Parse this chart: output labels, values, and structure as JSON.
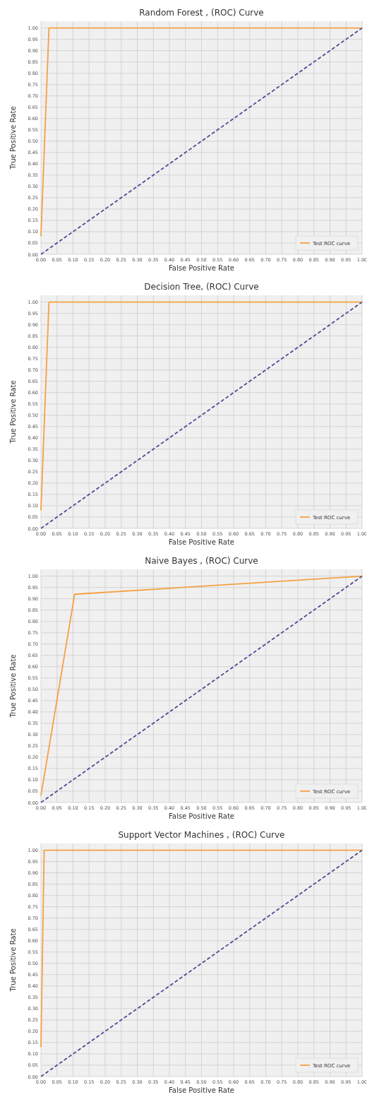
{
  "chart_data": [
    {
      "type": "line",
      "title": "Random Forest , (ROC) Curve",
      "xlabel": "False Positive Rate",
      "ylabel": "True Positive Rate",
      "xlim": [
        0,
        1
      ],
      "ylim": [
        0,
        1.03
      ],
      "xticks": [
        {
          "value": 0,
          "label": "0.00"
        },
        {
          "value": 0.05,
          "label": "0.05"
        },
        {
          "value": 0.1,
          "label": "0.10"
        },
        {
          "value": 0.15,
          "label": "0.15"
        },
        {
          "value": 0.2,
          "label": "0.20"
        },
        {
          "value": 0.25,
          "label": "0.25"
        },
        {
          "value": 0.3,
          "label": "0.30"
        },
        {
          "value": 0.35,
          "label": "0.35"
        },
        {
          "value": 0.4,
          "label": "0.40"
        },
        {
          "value": 0.45,
          "label": "0.45"
        },
        {
          "value": 0.5,
          "label": "0.50"
        },
        {
          "value": 0.55,
          "label": "0.55"
        },
        {
          "value": 0.6,
          "label": "0.60"
        },
        {
          "value": 0.65,
          "label": "0.65"
        },
        {
          "value": 0.7,
          "label": "0.70"
        },
        {
          "value": 0.75,
          "label": "0.75"
        },
        {
          "value": 0.8,
          "label": "0.80"
        },
        {
          "value": 0.85,
          "label": "0.85"
        },
        {
          "value": 0.9,
          "label": "0.90"
        },
        {
          "value": 0.95,
          "label": "0.95"
        },
        {
          "value": 1,
          "label": "1.00"
        }
      ],
      "yticks": [
        {
          "value": 0,
          "label": "0.00"
        },
        {
          "value": 0.05,
          "label": "0.05"
        },
        {
          "value": 0.1,
          "label": "0.10"
        },
        {
          "value": 0.15,
          "label": "0.15"
        },
        {
          "value": 0.2,
          "label": "0.20"
        },
        {
          "value": 0.25,
          "label": "0.25"
        },
        {
          "value": 0.3,
          "label": "0.30"
        },
        {
          "value": 0.35,
          "label": "0.35"
        },
        {
          "value": 0.4,
          "label": "0.40"
        },
        {
          "value": 0.45,
          "label": "0.45"
        },
        {
          "value": 0.5,
          "label": "0.50"
        },
        {
          "value": 0.55,
          "label": "0.55"
        },
        {
          "value": 0.6,
          "label": "0.60"
        },
        {
          "value": 0.65,
          "label": "0.65"
        },
        {
          "value": 0.7,
          "label": "0.70"
        },
        {
          "value": 0.75,
          "label": "0.75"
        },
        {
          "value": 0.8,
          "label": "0.80"
        },
        {
          "value": 0.85,
          "label": "0.85"
        },
        {
          "value": 0.9,
          "label": "0.90"
        },
        {
          "value": 0.95,
          "label": "0.95"
        },
        {
          "value": 1,
          "label": "1.00"
        }
      ],
      "grid": true,
      "legend": "bottom right",
      "marker": "none",
      "series": [
        {
          "name": "Test ROC curve",
          "color": "#f5a142",
          "x": [
            0,
            0.025,
            1
          ],
          "values": [
            0.08,
            1,
            1
          ],
          "line_style": "solid"
        },
        {
          "color": "#4b4b96",
          "x": [
            0,
            1
          ],
          "values": [
            0,
            1
          ],
          "line_style": "dashed"
        }
      ]
    },
    {
      "type": "line",
      "title": "Decision Tree, (ROC) Curve",
      "xlabel": "False Positive Rate",
      "ylabel": "True Positive Rate",
      "xlim": [
        0,
        1
      ],
      "ylim": [
        0,
        1.03
      ],
      "xticks": [
        {
          "value": 0,
          "label": "0.00"
        },
        {
          "value": 0.05,
          "label": "0.05"
        },
        {
          "value": 0.1,
          "label": "0.10"
        },
        {
          "value": 0.15,
          "label": "0.15"
        },
        {
          "value": 0.2,
          "label": "0.20"
        },
        {
          "value": 0.25,
          "label": "0.25"
        },
        {
          "value": 0.3,
          "label": "0.30"
        },
        {
          "value": 0.35,
          "label": "0.35"
        },
        {
          "value": 0.4,
          "label": "0.40"
        },
        {
          "value": 0.45,
          "label": "0.45"
        },
        {
          "value": 0.5,
          "label": "0.50"
        },
        {
          "value": 0.55,
          "label": "0.55"
        },
        {
          "value": 0.6,
          "label": "0.60"
        },
        {
          "value": 0.65,
          "label": "0.65"
        },
        {
          "value": 0.7,
          "label": "0.70"
        },
        {
          "value": 0.75,
          "label": "0.75"
        },
        {
          "value": 0.8,
          "label": "0.80"
        },
        {
          "value": 0.85,
          "label": "0.85"
        },
        {
          "value": 0.9,
          "label": "0.90"
        },
        {
          "value": 0.95,
          "label": "0.95"
        },
        {
          "value": 1,
          "label": "1.00"
        }
      ],
      "yticks": [
        {
          "value": 0,
          "label": "0.00"
        },
        {
          "value": 0.05,
          "label": "0.05"
        },
        {
          "value": 0.1,
          "label": "0.10"
        },
        {
          "value": 0.15,
          "label": "0.15"
        },
        {
          "value": 0.2,
          "label": "0.20"
        },
        {
          "value": 0.25,
          "label": "0.25"
        },
        {
          "value": 0.3,
          "label": "0.30"
        },
        {
          "value": 0.35,
          "label": "0.35"
        },
        {
          "value": 0.4,
          "label": "0.40"
        },
        {
          "value": 0.45,
          "label": "0.45"
        },
        {
          "value": 0.5,
          "label": "0.50"
        },
        {
          "value": 0.55,
          "label": "0.55"
        },
        {
          "value": 0.6,
          "label": "0.60"
        },
        {
          "value": 0.65,
          "label": "0.65"
        },
        {
          "value": 0.7,
          "label": "0.70"
        },
        {
          "value": 0.75,
          "label": "0.75"
        },
        {
          "value": 0.8,
          "label": "0.80"
        },
        {
          "value": 0.85,
          "label": "0.85"
        },
        {
          "value": 0.9,
          "label": "0.90"
        },
        {
          "value": 0.95,
          "label": "0.95"
        },
        {
          "value": 1,
          "label": "1.00"
        }
      ],
      "grid": true,
      "legend": "bottom right",
      "marker": "none",
      "series": [
        {
          "name": "Test ROC curve",
          "color": "#f5a142",
          "x": [
            0,
            0.025,
            1
          ],
          "values": [
            0.08,
            1,
            1
          ],
          "line_style": "solid"
        },
        {
          "color": "#4b4b96",
          "x": [
            0,
            1
          ],
          "values": [
            0,
            1
          ],
          "line_style": "dashed"
        }
      ]
    },
    {
      "type": "line",
      "title": "Naive Bayes , (ROC) Curve",
      "xlabel": "False Positive Rate",
      "ylabel": "True Positive Rate",
      "xlim": [
        0,
        1
      ],
      "ylim": [
        0,
        1.03
      ],
      "xticks": [
        {
          "value": 0,
          "label": "0.00"
        },
        {
          "value": 0.05,
          "label": "0.05"
        },
        {
          "value": 0.1,
          "label": "0.10"
        },
        {
          "value": 0.15,
          "label": "0.15"
        },
        {
          "value": 0.2,
          "label": "0.20"
        },
        {
          "value": 0.25,
          "label": "0.25"
        },
        {
          "value": 0.3,
          "label": "0.30"
        },
        {
          "value": 0.35,
          "label": "0.35"
        },
        {
          "value": 0.4,
          "label": "0.40"
        },
        {
          "value": 0.45,
          "label": "0.45"
        },
        {
          "value": 0.5,
          "label": "0.50"
        },
        {
          "value": 0.55,
          "label": "0.55"
        },
        {
          "value": 0.6,
          "label": "0.60"
        },
        {
          "value": 0.65,
          "label": "0.65"
        },
        {
          "value": 0.7,
          "label": "0.70"
        },
        {
          "value": 0.75,
          "label": "0.75"
        },
        {
          "value": 0.8,
          "label": "0.80"
        },
        {
          "value": 0.85,
          "label": "0.85"
        },
        {
          "value": 0.9,
          "label": "0.90"
        },
        {
          "value": 0.95,
          "label": "0.95"
        },
        {
          "value": 1,
          "label": "1.00"
        }
      ],
      "yticks": [
        {
          "value": 0,
          "label": "0.00"
        },
        {
          "value": 0.05,
          "label": "0.05"
        },
        {
          "value": 0.1,
          "label": "0.10"
        },
        {
          "value": 0.15,
          "label": "0.15"
        },
        {
          "value": 0.2,
          "label": "0.20"
        },
        {
          "value": 0.25,
          "label": "0.25"
        },
        {
          "value": 0.3,
          "label": "0.30"
        },
        {
          "value": 0.35,
          "label": "0.35"
        },
        {
          "value": 0.4,
          "label": "0.40"
        },
        {
          "value": 0.45,
          "label": "0.45"
        },
        {
          "value": 0.5,
          "label": "0.50"
        },
        {
          "value": 0.55,
          "label": "0.55"
        },
        {
          "value": 0.6,
          "label": "0.60"
        },
        {
          "value": 0.65,
          "label": "0.65"
        },
        {
          "value": 0.7,
          "label": "0.70"
        },
        {
          "value": 0.75,
          "label": "0.75"
        },
        {
          "value": 0.8,
          "label": "0.80"
        },
        {
          "value": 0.85,
          "label": "0.85"
        },
        {
          "value": 0.9,
          "label": "0.90"
        },
        {
          "value": 0.95,
          "label": "0.95"
        },
        {
          "value": 1,
          "label": "1.00"
        }
      ],
      "grid": true,
      "legend": "bottom right",
      "marker": "none",
      "series": [
        {
          "name": "Test ROC curve",
          "color": "#f5a142",
          "x": [
            0,
            0.105,
            1
          ],
          "values": [
            0.03,
            0.92,
            1
          ],
          "line_style": "solid"
        },
        {
          "color": "#4b4b96",
          "x": [
            0,
            1
          ],
          "values": [
            0,
            1
          ],
          "line_style": "dashed"
        }
      ]
    },
    {
      "type": "line",
      "title": "Support Vector Machines , (ROC) Curve",
      "xlabel": "False Positive Rate",
      "ylabel": "True Positive Rate",
      "xlim": [
        0,
        1
      ],
      "ylim": [
        0,
        1.03
      ],
      "xticks": [
        {
          "value": 0,
          "label": "0.00"
        },
        {
          "value": 0.05,
          "label": "0.05"
        },
        {
          "value": 0.1,
          "label": "0.10"
        },
        {
          "value": 0.15,
          "label": "0.15"
        },
        {
          "value": 0.2,
          "label": "0.20"
        },
        {
          "value": 0.25,
          "label": "0.25"
        },
        {
          "value": 0.3,
          "label": "0.30"
        },
        {
          "value": 0.35,
          "label": "0.35"
        },
        {
          "value": 0.4,
          "label": "0.40"
        },
        {
          "value": 0.45,
          "label": "0.45"
        },
        {
          "value": 0.5,
          "label": "0.50"
        },
        {
          "value": 0.55,
          "label": "0.55"
        },
        {
          "value": 0.6,
          "label": "0.60"
        },
        {
          "value": 0.65,
          "label": "0.65"
        },
        {
          "value": 0.7,
          "label": "0.70"
        },
        {
          "value": 0.75,
          "label": "0.75"
        },
        {
          "value": 0.8,
          "label": "0.80"
        },
        {
          "value": 0.85,
          "label": "0.85"
        },
        {
          "value": 0.9,
          "label": "0.90"
        },
        {
          "value": 0.95,
          "label": "0.95"
        },
        {
          "value": 1,
          "label": "1.00"
        }
      ],
      "yticks": [
        {
          "value": 0,
          "label": "0.00"
        },
        {
          "value": 0.05,
          "label": "0.05"
        },
        {
          "value": 0.1,
          "label": "0.10"
        },
        {
          "value": 0.15,
          "label": "0.15"
        },
        {
          "value": 0.2,
          "label": "0.20"
        },
        {
          "value": 0.25,
          "label": "0.25"
        },
        {
          "value": 0.3,
          "label": "0.30"
        },
        {
          "value": 0.35,
          "label": "0.35"
        },
        {
          "value": 0.4,
          "label": "0.40"
        },
        {
          "value": 0.45,
          "label": "0.45"
        },
        {
          "value": 0.5,
          "label": "0.50"
        },
        {
          "value": 0.55,
          "label": "0.55"
        },
        {
          "value": 0.6,
          "label": "0.60"
        },
        {
          "value": 0.65,
          "label": "0.65"
        },
        {
          "value": 0.7,
          "label": "0.70"
        },
        {
          "value": 0.75,
          "label": "0.75"
        },
        {
          "value": 0.8,
          "label": "0.80"
        },
        {
          "value": 0.85,
          "label": "0.85"
        },
        {
          "value": 0.9,
          "label": "0.90"
        },
        {
          "value": 0.95,
          "label": "0.95"
        },
        {
          "value": 1,
          "label": "1.00"
        }
      ],
      "grid": true,
      "legend": "bottom right",
      "marker": "none",
      "series": [
        {
          "name": "Test ROC curve",
          "color": "#f5a142",
          "x": [
            0,
            0.01,
            1
          ],
          "values": [
            0.13,
            1,
            1
          ],
          "line_style": "solid"
        },
        {
          "color": "#4b4b96",
          "x": [
            0,
            1
          ],
          "values": [
            0,
            1
          ],
          "line_style": "dashed"
        }
      ]
    }
  ]
}
